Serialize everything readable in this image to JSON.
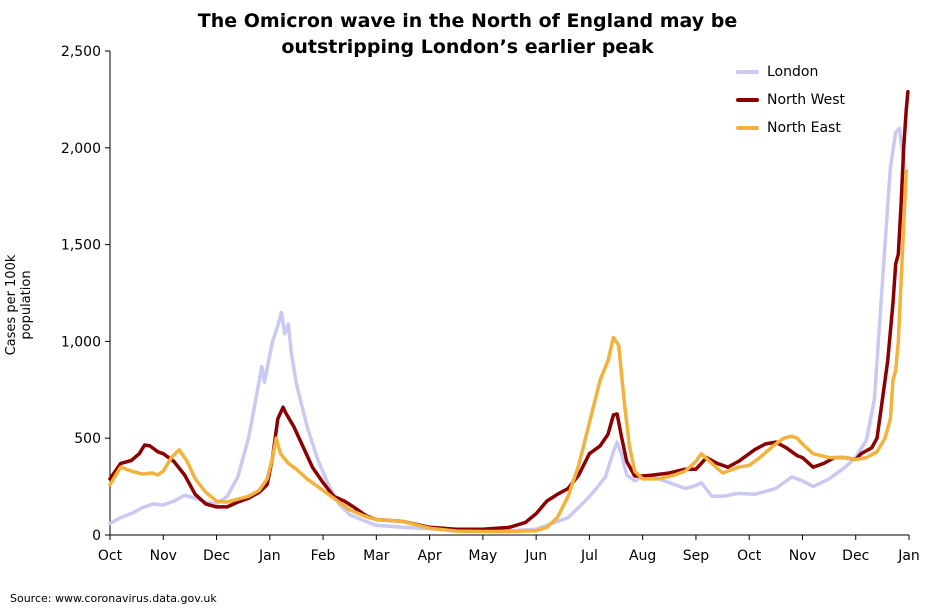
{
  "chart_data": {
    "type": "line",
    "title_line1": "The Omicron wave in the North of England may be",
    "title_line2": "outstripping London’s earlier peak",
    "ylabel": "Cases per 100k population",
    "xlabel": "",
    "ylim": [
      0,
      2500
    ],
    "y_ticks": [
      0,
      500,
      1000,
      1500,
      2000,
      2500
    ],
    "y_tick_labels": [
      "0",
      "500",
      "1,000",
      "1,500",
      "2,000",
      "2,500"
    ],
    "x_ticks": [
      0,
      1,
      2,
      3,
      4,
      5,
      6,
      7,
      8,
      9,
      10,
      11,
      12,
      13,
      14,
      15
    ],
    "x_tick_labels": [
      "Oct",
      "Nov",
      "Dec",
      "Jan",
      "Feb",
      "Mar",
      "Apr",
      "May",
      "Jun",
      "Jul",
      "Aug",
      "Sep",
      "Oct",
      "Nov",
      "Dec",
      "Jan"
    ],
    "x_unit": "months since 1 Oct 2020",
    "legend_position": "top-right",
    "source": "Source: www.coronavirus.data.gov.uk",
    "series": [
      {
        "name": "London",
        "color": "#c9c9f2",
        "points": [
          [
            0,
            60
          ],
          [
            0.2,
            90
          ],
          [
            0.4,
            110
          ],
          [
            0.6,
            140
          ],
          [
            0.8,
            160
          ],
          [
            1,
            155
          ],
          [
            1.2,
            175
          ],
          [
            1.4,
            205
          ],
          [
            1.6,
            190
          ],
          [
            1.8,
            170
          ],
          [
            2,
            160
          ],
          [
            2.2,
            200
          ],
          [
            2.4,
            300
          ],
          [
            2.6,
            500
          ],
          [
            2.75,
            720
          ],
          [
            2.85,
            870
          ],
          [
            2.9,
            790
          ],
          [
            2.95,
            860
          ],
          [
            3.05,
            1000
          ],
          [
            3.15,
            1080
          ],
          [
            3.22,
            1150
          ],
          [
            3.28,
            1040
          ],
          [
            3.35,
            1090
          ],
          [
            3.4,
            950
          ],
          [
            3.5,
            780
          ],
          [
            3.7,
            560
          ],
          [
            3.9,
            390
          ],
          [
            4.1,
            260
          ],
          [
            4.3,
            160
          ],
          [
            4.5,
            105
          ],
          [
            4.8,
            70
          ],
          [
            5.0,
            50
          ],
          [
            5.5,
            40
          ],
          [
            6.0,
            32
          ],
          [
            6.5,
            25
          ],
          [
            7.0,
            22
          ],
          [
            7.5,
            22
          ],
          [
            8.0,
            30
          ],
          [
            8.3,
            60
          ],
          [
            8.6,
            90
          ],
          [
            8.9,
            170
          ],
          [
            9.1,
            230
          ],
          [
            9.3,
            300
          ],
          [
            9.45,
            430
          ],
          [
            9.52,
            480
          ],
          [
            9.6,
            420
          ],
          [
            9.7,
            310
          ],
          [
            9.85,
            280
          ],
          [
            10.0,
            300
          ],
          [
            10.2,
            300
          ],
          [
            10.5,
            270
          ],
          [
            10.8,
            240
          ],
          [
            11.0,
            255
          ],
          [
            11.1,
            270
          ],
          [
            11.3,
            200
          ],
          [
            11.5,
            200
          ],
          [
            11.8,
            215
          ],
          [
            12.1,
            210
          ],
          [
            12.5,
            240
          ],
          [
            12.8,
            300
          ],
          [
            13.0,
            280
          ],
          [
            13.2,
            250
          ],
          [
            13.5,
            290
          ],
          [
            13.8,
            350
          ],
          [
            14.0,
            400
          ],
          [
            14.2,
            490
          ],
          [
            14.35,
            700
          ],
          [
            14.45,
            1100
          ],
          [
            14.55,
            1500
          ],
          [
            14.65,
            1900
          ],
          [
            14.75,
            2080
          ],
          [
            14.82,
            2100
          ],
          [
            14.88,
            1980
          ],
          [
            14.92,
            1900
          ]
        ]
      },
      {
        "name": "North West",
        "color": "#8b0000",
        "points": [
          [
            0,
            290
          ],
          [
            0.2,
            370
          ],
          [
            0.4,
            385
          ],
          [
            0.55,
            420
          ],
          [
            0.65,
            465
          ],
          [
            0.75,
            460
          ],
          [
            0.9,
            430
          ],
          [
            1.0,
            420
          ],
          [
            1.2,
            380
          ],
          [
            1.4,
            310
          ],
          [
            1.6,
            210
          ],
          [
            1.8,
            160
          ],
          [
            2.0,
            145
          ],
          [
            2.2,
            145
          ],
          [
            2.4,
            170
          ],
          [
            2.6,
            190
          ],
          [
            2.8,
            220
          ],
          [
            2.95,
            260
          ],
          [
            3.05,
            400
          ],
          [
            3.15,
            600
          ],
          [
            3.25,
            660
          ],
          [
            3.3,
            630
          ],
          [
            3.45,
            560
          ],
          [
            3.6,
            470
          ],
          [
            3.8,
            350
          ],
          [
            4.0,
            270
          ],
          [
            4.2,
            200
          ],
          [
            4.4,
            175
          ],
          [
            4.6,
            140
          ],
          [
            4.8,
            100
          ],
          [
            5.0,
            80
          ],
          [
            5.5,
            70
          ],
          [
            6.0,
            40
          ],
          [
            6.5,
            30
          ],
          [
            7.0,
            30
          ],
          [
            7.5,
            40
          ],
          [
            7.8,
            65
          ],
          [
            8.0,
            110
          ],
          [
            8.2,
            175
          ],
          [
            8.4,
            210
          ],
          [
            8.6,
            240
          ],
          [
            8.8,
            310
          ],
          [
            9.0,
            420
          ],
          [
            9.2,
            460
          ],
          [
            9.35,
            520
          ],
          [
            9.45,
            620
          ],
          [
            9.52,
            625
          ],
          [
            9.6,
            510
          ],
          [
            9.7,
            380
          ],
          [
            9.85,
            305
          ],
          [
            10.0,
            305
          ],
          [
            10.2,
            310
          ],
          [
            10.5,
            320
          ],
          [
            10.8,
            340
          ],
          [
            11.0,
            340
          ],
          [
            11.2,
            400
          ],
          [
            11.4,
            370
          ],
          [
            11.6,
            350
          ],
          [
            11.8,
            380
          ],
          [
            12.1,
            440
          ],
          [
            12.3,
            470
          ],
          [
            12.5,
            480
          ],
          [
            12.7,
            450
          ],
          [
            12.9,
            410
          ],
          [
            13.0,
            400
          ],
          [
            13.2,
            350
          ],
          [
            13.4,
            370
          ],
          [
            13.6,
            400
          ],
          [
            13.8,
            400
          ],
          [
            14.0,
            390
          ],
          [
            14.1,
            420
          ],
          [
            14.3,
            450
          ],
          [
            14.4,
            500
          ],
          [
            14.5,
            700
          ],
          [
            14.6,
            900
          ],
          [
            14.7,
            1200
          ],
          [
            14.75,
            1400
          ],
          [
            14.8,
            1450
          ],
          [
            14.85,
            1700
          ],
          [
            14.9,
            2000
          ],
          [
            14.95,
            2200
          ],
          [
            14.98,
            2290
          ]
        ]
      },
      {
        "name": "North East",
        "color": "#f2b23c",
        "points": [
          [
            0,
            260
          ],
          [
            0.2,
            350
          ],
          [
            0.4,
            330
          ],
          [
            0.6,
            315
          ],
          [
            0.8,
            320
          ],
          [
            0.9,
            310
          ],
          [
            1.0,
            330
          ],
          [
            1.15,
            400
          ],
          [
            1.3,
            440
          ],
          [
            1.45,
            380
          ],
          [
            1.6,
            290
          ],
          [
            1.8,
            220
          ],
          [
            2.0,
            175
          ],
          [
            2.2,
            170
          ],
          [
            2.4,
            185
          ],
          [
            2.6,
            200
          ],
          [
            2.8,
            230
          ],
          [
            2.95,
            290
          ],
          [
            3.05,
            400
          ],
          [
            3.12,
            500
          ],
          [
            3.2,
            420
          ],
          [
            3.35,
            370
          ],
          [
            3.5,
            340
          ],
          [
            3.7,
            290
          ],
          [
            3.9,
            250
          ],
          [
            4.1,
            210
          ],
          [
            4.3,
            170
          ],
          [
            4.5,
            130
          ],
          [
            4.8,
            95
          ],
          [
            5.0,
            80
          ],
          [
            5.5,
            70
          ],
          [
            6.0,
            35
          ],
          [
            6.5,
            20
          ],
          [
            7.0,
            18
          ],
          [
            7.5,
            18
          ],
          [
            8.0,
            22
          ],
          [
            8.2,
            40
          ],
          [
            8.4,
            90
          ],
          [
            8.6,
            200
          ],
          [
            8.8,
            360
          ],
          [
            9.0,
            580
          ],
          [
            9.2,
            800
          ],
          [
            9.35,
            900
          ],
          [
            9.45,
            1020
          ],
          [
            9.55,
            980
          ],
          [
            9.65,
            700
          ],
          [
            9.75,
            460
          ],
          [
            9.85,
            330
          ],
          [
            10.0,
            290
          ],
          [
            10.3,
            290
          ],
          [
            10.6,
            310
          ],
          [
            10.8,
            330
          ],
          [
            11.0,
            380
          ],
          [
            11.1,
            420
          ],
          [
            11.3,
            370
          ],
          [
            11.5,
            320
          ],
          [
            11.8,
            350
          ],
          [
            12.0,
            360
          ],
          [
            12.2,
            400
          ],
          [
            12.45,
            460
          ],
          [
            12.65,
            500
          ],
          [
            12.8,
            510
          ],
          [
            12.9,
            500
          ],
          [
            13.0,
            470
          ],
          [
            13.2,
            420
          ],
          [
            13.5,
            400
          ],
          [
            13.8,
            400
          ],
          [
            14.0,
            390
          ],
          [
            14.2,
            400
          ],
          [
            14.4,
            430
          ],
          [
            14.55,
            500
          ],
          [
            14.65,
            600
          ],
          [
            14.7,
            800
          ],
          [
            14.75,
            850
          ],
          [
            14.8,
            1000
          ],
          [
            14.85,
            1300
          ],
          [
            14.9,
            1600
          ],
          [
            14.95,
            1880
          ]
        ]
      }
    ]
  }
}
